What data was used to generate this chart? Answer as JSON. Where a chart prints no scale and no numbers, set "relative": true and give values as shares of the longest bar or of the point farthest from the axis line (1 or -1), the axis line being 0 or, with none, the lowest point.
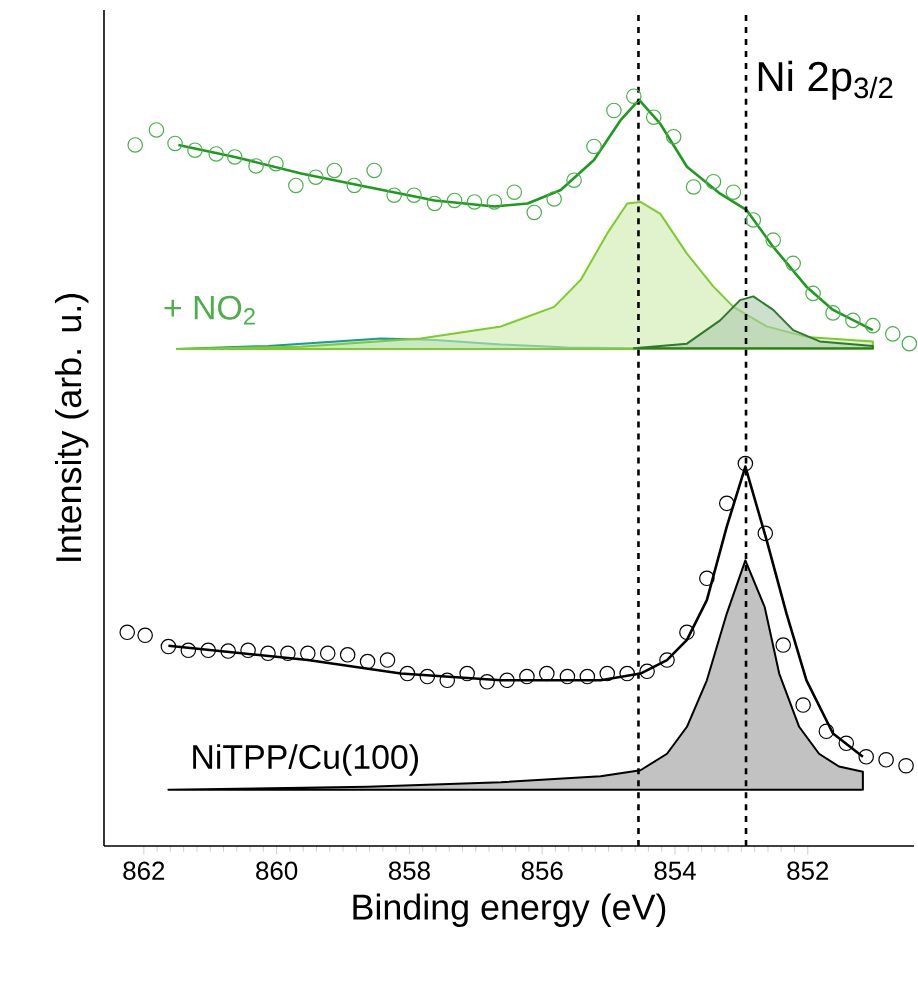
{
  "chart_data": {
    "type": "line",
    "title": "Ni 2p$_{3/2}$",
    "xlabel": "Binding energy (eV)",
    "ylabel": "Intensity (arb. u.)",
    "relative": true,
    "xlim": [
      862.6,
      850.4
    ],
    "xticks": [
      862,
      860,
      858,
      856,
      854,
      852
    ],
    "ref_lines": [
      {
        "axis": "x",
        "value": 854.55,
        "line_style": "dashed",
        "color": "#000000"
      },
      {
        "axis": "x",
        "value": 852.93,
        "line_style": "dashed",
        "color": "#000000"
      }
    ],
    "series": [
      {
        "type": "area",
        "color": "#1a9a9a",
        "x": [
          861.5,
          860.13,
          858.43,
          857.62,
          856.62,
          855.62,
          854.62,
          851.02
        ],
        "values": [
          0.663,
          0.667,
          0.677,
          0.675,
          0.669,
          0.665,
          0.664,
          0.663
        ]
      },
      {
        "type": "area",
        "color": "#7ccc2a",
        "x": [
          861.5,
          859.63,
          857.83,
          856.62,
          855.82,
          855.42,
          855.02,
          854.72,
          854.52,
          854.22,
          853.82,
          853.42,
          853.12,
          852.62,
          852.02,
          851.02
        ],
        "values": [
          0.663,
          0.666,
          0.677,
          0.693,
          0.719,
          0.755,
          0.817,
          0.857,
          0.859,
          0.843,
          0.79,
          0.746,
          0.719,
          0.693,
          0.679,
          0.673
        ]
      },
      {
        "type": "area",
        "color": "#2c7a2c",
        "x": [
          854.62,
          853.82,
          853.32,
          853.02,
          852.82,
          852.52,
          852.22,
          851.82,
          851.02
        ],
        "values": [
          0.664,
          0.67,
          0.701,
          0.728,
          0.733,
          0.715,
          0.688,
          0.673,
          0.667
        ]
      },
      {
        "color": "#1e9a1e",
        "x": [
          861.48,
          860.63,
          859.63,
          858.63,
          857.62,
          856.72,
          856.22,
          855.72,
          855.22,
          854.82,
          854.54,
          854.22,
          853.82,
          853.32,
          852.92,
          852.52,
          852.02,
          851.62,
          851.02
        ],
        "values": [
          0.935,
          0.919,
          0.897,
          0.879,
          0.861,
          0.853,
          0.857,
          0.875,
          0.915,
          0.968,
          0.995,
          0.963,
          0.906,
          0.87,
          0.848,
          0.799,
          0.746,
          0.715,
          0.688
        ]
      },
      {
        "type": "scatter",
        "marker": "circle",
        "name": "+ NO$_{2}$",
        "color": "#4caf4c",
        "x": [
          862.13,
          861.81,
          861.53,
          861.23,
          860.91,
          860.63,
          860.31,
          860.01,
          859.71,
          859.41,
          859.13,
          858.83,
          858.53,
          858.23,
          857.93,
          857.62,
          857.32,
          857.02,
          856.72,
          856.42,
          856.12,
          855.82,
          855.52,
          855.22,
          854.92,
          854.62,
          854.32,
          854.02,
          853.72,
          853.42,
          853.12,
          852.82,
          852.52,
          852.22,
          851.92,
          851.62,
          851.32,
          851.02,
          850.72,
          850.47
        ],
        "values": [
          0.935,
          0.955,
          0.937,
          0.928,
          0.923,
          0.919,
          0.907,
          0.91,
          0.881,
          0.892,
          0.901,
          0.881,
          0.901,
          0.868,
          0.868,
          0.857,
          0.861,
          0.859,
          0.859,
          0.872,
          0.845,
          0.863,
          0.888,
          0.933,
          0.981,
          1.0,
          0.972,
          0.946,
          0.879,
          0.886,
          0.872,
          0.835,
          0.808,
          0.777,
          0.737,
          0.711,
          0.701,
          0.694,
          0.683,
          0.67
        ]
      },
      {
        "type": "area",
        "color": "#000000",
        "x": [
          861.63,
          858.63,
          856.62,
          855.12,
          854.52,
          854.12,
          853.82,
          853.52,
          853.22,
          852.94,
          852.65,
          852.43,
          852.13,
          851.83,
          851.53,
          851.17
        ],
        "values": [
          0.075,
          0.079,
          0.085,
          0.093,
          0.101,
          0.123,
          0.159,
          0.221,
          0.31,
          0.381,
          0.319,
          0.23,
          0.159,
          0.123,
          0.106,
          0.099
        ]
      },
      {
        "color": "#000000",
        "x": [
          861.63,
          859.53,
          858.13,
          856.62,
          855.12,
          854.52,
          854.12,
          853.82,
          853.52,
          853.22,
          852.94,
          852.62,
          852.32,
          852.02,
          851.62,
          851.17
        ],
        "values": [
          0.267,
          0.248,
          0.23,
          0.221,
          0.221,
          0.23,
          0.248,
          0.275,
          0.328,
          0.426,
          0.506,
          0.408,
          0.31,
          0.221,
          0.15,
          0.119
        ]
      },
      {
        "type": "scatter",
        "marker": "circle",
        "name": "NiTPP/Cu(100)",
        "color": "#000000",
        "x": [
          862.25,
          861.98,
          861.63,
          861.33,
          861.03,
          860.73,
          860.43,
          860.13,
          859.83,
          859.53,
          859.23,
          858.93,
          858.63,
          858.33,
          858.03,
          857.73,
          857.43,
          857.13,
          856.83,
          856.53,
          856.23,
          855.93,
          855.62,
          855.32,
          855.02,
          854.72,
          854.42,
          854.12,
          853.82,
          853.52,
          853.22,
          852.94,
          852.64,
          852.37,
          852.07,
          851.72,
          851.42,
          851.12,
          850.82,
          850.52
        ],
        "values": [
          0.285,
          0.281,
          0.266,
          0.261,
          0.261,
          0.26,
          0.261,
          0.257,
          0.257,
          0.257,
          0.257,
          0.255,
          0.246,
          0.248,
          0.23,
          0.226,
          0.221,
          0.23,
          0.219,
          0.221,
          0.226,
          0.23,
          0.226,
          0.226,
          0.23,
          0.23,
          0.233,
          0.248,
          0.285,
          0.357,
          0.457,
          0.51,
          0.417,
          0.268,
          0.188,
          0.153,
          0.137,
          0.119,
          0.115,
          0.107
        ]
      }
    ]
  }
}
